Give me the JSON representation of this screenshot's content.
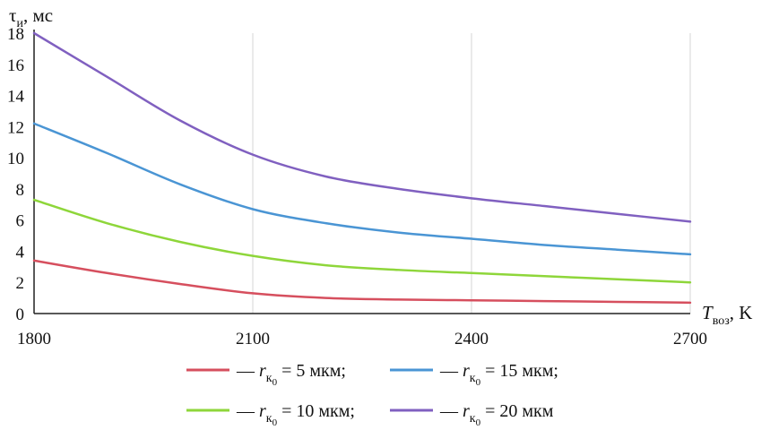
{
  "chart_data": {
    "type": "line",
    "xlabel": {
      "main": "T",
      "sub": "воз",
      "tail": ", K"
    },
    "ylabel": {
      "main": "τ",
      "sub": "и",
      "tail": ", мс"
    },
    "xlim": [
      1800,
      2700
    ],
    "ylim": [
      0,
      18
    ],
    "xticks": [
      1800,
      2100,
      2400,
      2700
    ],
    "yticks": [
      0,
      2,
      4,
      6,
      8,
      10,
      12,
      14,
      16,
      18
    ],
    "grid": "vertical",
    "legend_placement": "bottom",
    "x": [
      1800,
      1900,
      2000,
      2100,
      2200,
      2300,
      2400,
      2500,
      2600,
      2700
    ],
    "series": [
      {
        "legend": {
          "prefix": "— r",
          "sub": "к",
          "subsub": "0",
          "suffix": " = 5 мкм;"
        },
        "color": "#d64f5e",
        "values": [
          3.4,
          2.6,
          1.9,
          1.3,
          1.0,
          0.9,
          0.85,
          0.8,
          0.75,
          0.7
        ]
      },
      {
        "legend": {
          "prefix": "— r",
          "sub": "к",
          "subsub": "0",
          "suffix": " = 10 мкм;"
        },
        "color": "#8ed63a",
        "values": [
          7.3,
          5.8,
          4.6,
          3.7,
          3.1,
          2.8,
          2.6,
          2.4,
          2.2,
          2.0
        ]
      },
      {
        "legend": {
          "prefix": "— r",
          "sub": "к",
          "subsub": "0",
          "suffix": " = 15 мкм;"
        },
        "color": "#4a95d4",
        "values": [
          12.2,
          10.3,
          8.3,
          6.7,
          5.8,
          5.2,
          4.8,
          4.4,
          4.1,
          3.8
        ]
      },
      {
        "legend": {
          "prefix": "— r",
          "sub": "к",
          "subsub": "0",
          "suffix": " = 20 мкм"
        },
        "color": "#8060c0",
        "values": [
          18.0,
          15.2,
          12.4,
          10.2,
          8.8,
          8.0,
          7.4,
          6.9,
          6.4,
          5.9
        ]
      }
    ]
  }
}
